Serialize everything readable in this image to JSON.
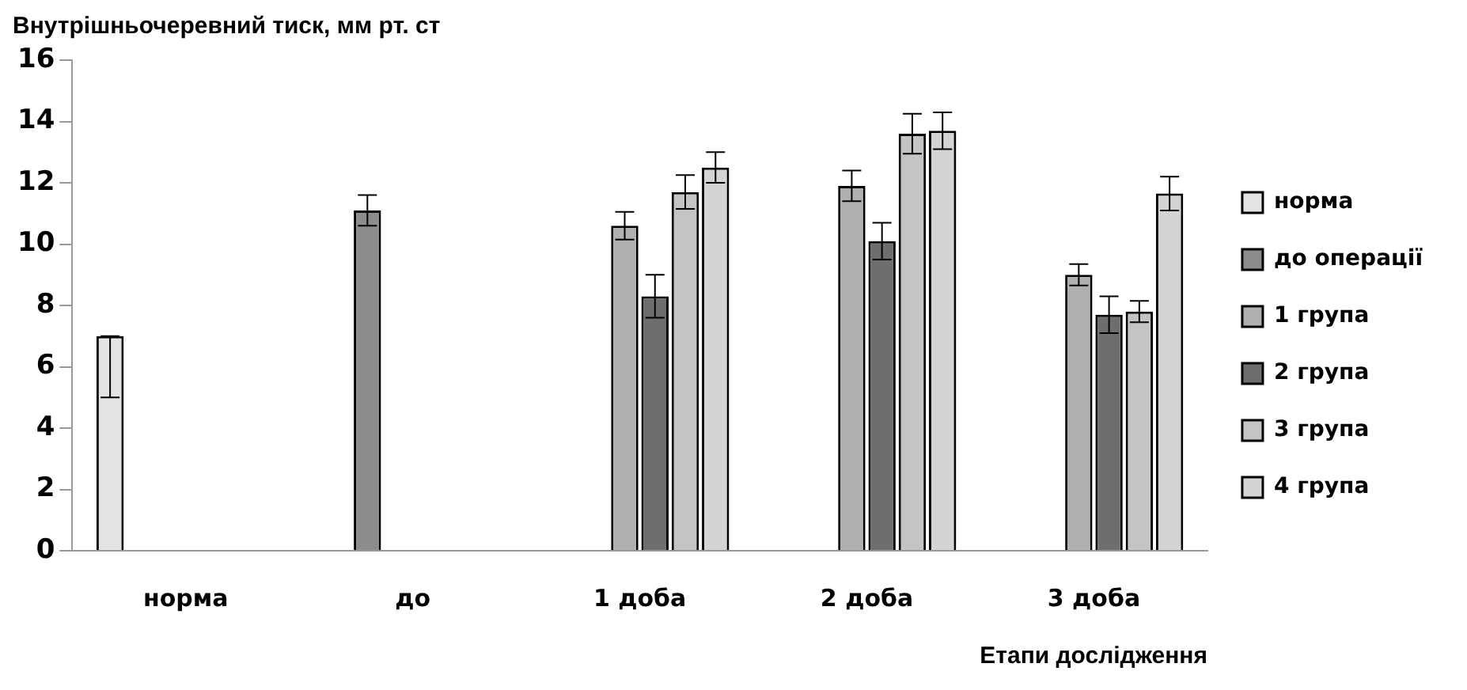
{
  "chart_data": {
    "type": "bar",
    "title": "Внутрішньочеревний тиск, мм рт. ст",
    "xlabel": "Етапи дослідження",
    "categories": [
      "норма",
      "до",
      "1 доба",
      "2 доба",
      "3 доба"
    ],
    "series": [
      {
        "name": "норма",
        "color": "#e4e4e4",
        "values": [
          7,
          null,
          null,
          null,
          null
        ],
        "errors": [
          [
            5,
            7
          ],
          null,
          null,
          null,
          null
        ]
      },
      {
        "name": "до операції",
        "color": "#8c8c8c",
        "values": [
          null,
          11.1,
          null,
          null,
          null
        ],
        "errors": [
          null,
          0.5,
          null,
          null,
          null
        ]
      },
      {
        "name": "1 група",
        "color": "#b0b0b0",
        "values": [
          null,
          null,
          10.6,
          11.9,
          9.0
        ],
        "errors": [
          null,
          null,
          0.45,
          0.5,
          0.35
        ]
      },
      {
        "name": "2 група",
        "color": "#6e6e6e",
        "values": [
          null,
          null,
          8.3,
          10.1,
          7.7
        ],
        "errors": [
          null,
          null,
          0.7,
          0.6,
          0.6
        ]
      },
      {
        "name": "3 група",
        "color": "#c4c4c4",
        "values": [
          null,
          null,
          11.7,
          13.6,
          7.8
        ],
        "errors": [
          null,
          null,
          0.55,
          0.65,
          0.35
        ]
      },
      {
        "name": "4 група",
        "color": "#d4d4d4",
        "values": [
          null,
          null,
          12.5,
          13.7,
          11.65
        ],
        "errors": [
          null,
          null,
          0.5,
          0.6,
          0.55
        ]
      }
    ],
    "ylim": [
      0,
      16
    ],
    "yticks": [
      0,
      2,
      4,
      6,
      8,
      10,
      12,
      14,
      16
    ],
    "grid": false,
    "legend": "right"
  }
}
